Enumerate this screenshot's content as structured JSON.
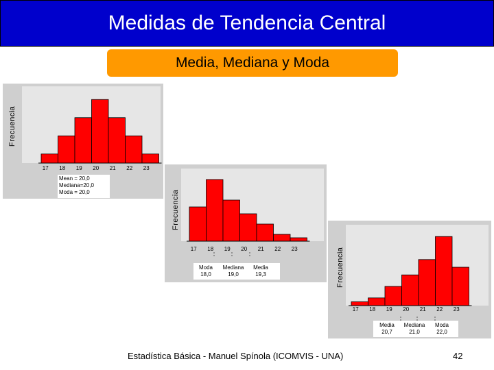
{
  "slide": {
    "title": "Medidas de Tendencia Central",
    "subtitle": "Media, Mediana y Moda",
    "footer": "Estadística Básica - Manuel Spínola (ICOMVIS - UNA)",
    "page_number": "42"
  },
  "colors": {
    "header": "#0000cc",
    "subtitle_bg": "#ff9900",
    "bar": "#ff0000",
    "panel": "#cfcfcf"
  },
  "chart_data": [
    {
      "type": "bar",
      "ylabel": "Frecuencia",
      "categories": [
        "17",
        "18",
        "19",
        "20",
        "21",
        "22",
        "23"
      ],
      "values": [
        1,
        3,
        5,
        7,
        5,
        3,
        1
      ],
      "ylim": [
        0,
        8
      ],
      "stats": [
        "Mean = 20,0",
        "Mediana=20,0",
        "Moda = 20,0"
      ]
    },
    {
      "type": "bar",
      "ylabel": "Frecuencia",
      "categories": [
        "17",
        "18",
        "19",
        "20",
        "21",
        "22",
        "23"
      ],
      "values": [
        5,
        9,
        6,
        4,
        2.5,
        1,
        0.5
      ],
      "ylim": [
        0,
        10
      ],
      "stats": [
        {
          "name": "Moda",
          "value": "18,0"
        },
        {
          "name": "Mediana",
          "value": "19,0"
        },
        {
          "name": "Media",
          "value": "19,3"
        }
      ]
    },
    {
      "type": "bar",
      "ylabel": "Frecuencia",
      "categories": [
        "17",
        "18",
        "19",
        "20",
        "21",
        "22",
        "23"
      ],
      "values": [
        0.5,
        1,
        2.5,
        4,
        6,
        9,
        5
      ],
      "ylim": [
        0,
        10
      ],
      "stats": [
        {
          "name": "Media",
          "value": "20,7"
        },
        {
          "name": "Mediana",
          "value": "21,0"
        },
        {
          "name": "Moda",
          "value": "22,0"
        }
      ]
    }
  ]
}
